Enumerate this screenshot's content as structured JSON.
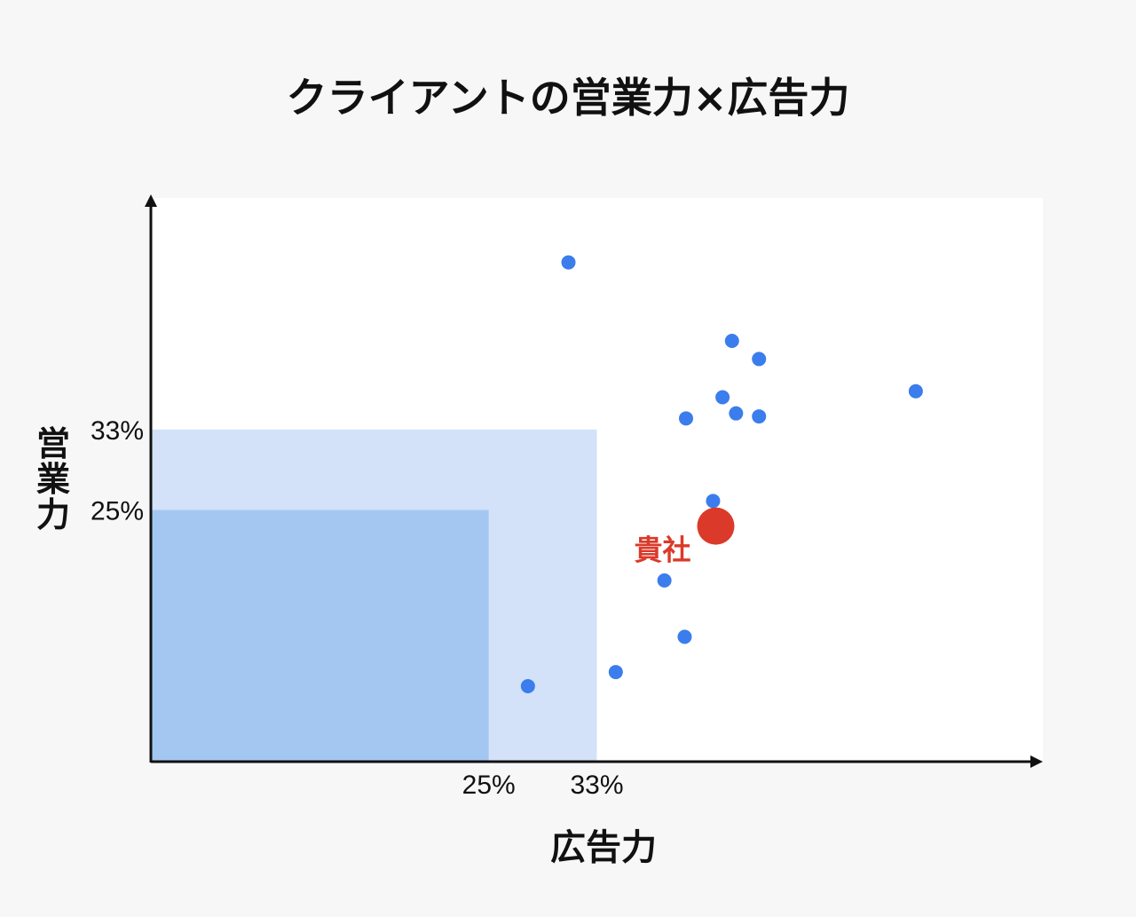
{
  "chart_data": {
    "type": "scatter",
    "title": "クライアントの営業力×広告力",
    "xlabel": "広告力",
    "ylabel": "営業力",
    "xlim": [
      0,
      66
    ],
    "ylim": [
      0,
      56
    ],
    "x_ticks": [
      {
        "value": 25,
        "label": "25%"
      },
      {
        "value": 33,
        "label": "33%"
      }
    ],
    "y_ticks": [
      {
        "value": 25,
        "label": "25%"
      },
      {
        "value": 33,
        "label": "33%"
      }
    ],
    "regions": [
      {
        "x_max": 33,
        "y_max": 33,
        "color": "#d3e2f8"
      },
      {
        "x_max": 25,
        "y_max": 25,
        "color": "#a4c7f2"
      }
    ],
    "points": [
      {
        "x": 30.9,
        "y": 49.6
      },
      {
        "x": 43.0,
        "y": 41.8
      },
      {
        "x": 45.0,
        "y": 40.0
      },
      {
        "x": 42.3,
        "y": 36.2
      },
      {
        "x": 43.3,
        "y": 34.6
      },
      {
        "x": 45.0,
        "y": 34.3
      },
      {
        "x": 39.6,
        "y": 34.1
      },
      {
        "x": 41.6,
        "y": 25.9
      },
      {
        "x": 38.0,
        "y": 18.0
      },
      {
        "x": 39.5,
        "y": 12.4
      },
      {
        "x": 34.4,
        "y": 8.9
      },
      {
        "x": 27.9,
        "y": 7.5
      },
      {
        "x": 56.6,
        "y": 36.8
      }
    ],
    "highlight": {
      "x": 41.8,
      "y": 23.4,
      "label": "貴社"
    },
    "colors": {
      "point": "#3b7ded",
      "highlight": "#db3a2a",
      "axis": "#111111",
      "plot_bg": "#ffffff",
      "page_bg": "#f7f7f7"
    }
  }
}
